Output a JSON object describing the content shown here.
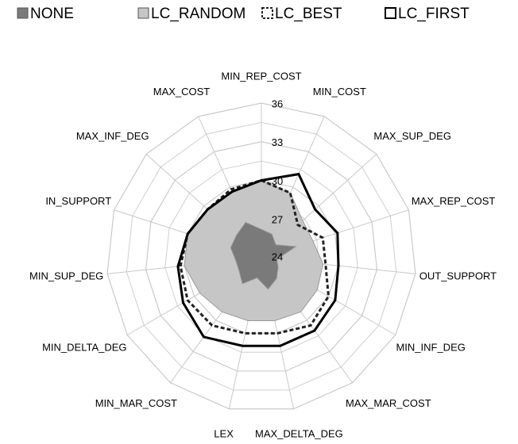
{
  "chart_data": {
    "type": "radar",
    "categories": [
      "MIN_REP_COST",
      "MIN_COST",
      "MAX_SUP_DEG",
      "MAX_REP_COST",
      "OUT_SUPPORT",
      "MIN_INF_DEG",
      "MAX_MAR_COST",
      "MAX_DELTA_DEG",
      "LEX",
      "MIN_MAR_COST",
      "MIN_DELTA_DEG",
      "MIN_SUP_DEG",
      "IN_SUPPORT",
      "MAX_INF_DEG",
      "MAX_COST"
    ],
    "series": [
      {
        "name": "NONE",
        "color": "#7a7a7a",
        "fill": true,
        "dashed": false,
        "values": [
          26.2,
          26,
          25.5,
          26.8,
          25.2,
          25.5,
          26,
          26.5,
          25.6,
          26.5,
          26,
          26,
          26.5,
          26.6,
          27
        ]
      },
      {
        "name": "LC_RANDOM",
        "color": "#c6c6c6",
        "fill": true,
        "dashed": false,
        "values": [
          30,
          29.5,
          28.3,
          28.2,
          28.8,
          29,
          29.2,
          29,
          29,
          29.2,
          29.5,
          30,
          30,
          29.6,
          29.6
        ]
      },
      {
        "name": "LC_BEST",
        "color": "#222222",
        "fill": false,
        "dashed": true,
        "values": [
          30,
          29.5,
          27.8,
          29,
          29,
          30,
          30.5,
          30,
          30,
          30.5,
          30.6,
          30.3,
          30,
          29.6,
          29.8
        ]
      },
      {
        "name": "LC_FIRST",
        "color": "#000000",
        "fill": false,
        "dashed": false,
        "values": [
          30,
          31.1,
          29.6,
          30.2,
          30,
          30.6,
          31,
          31,
          31,
          31.6,
          31,
          30.5,
          30,
          29.6,
          29.6
        ]
      }
    ],
    "ylim": [
      24,
      36
    ],
    "yticks": [
      24,
      27,
      30,
      33,
      36
    ],
    "grid": true
  }
}
